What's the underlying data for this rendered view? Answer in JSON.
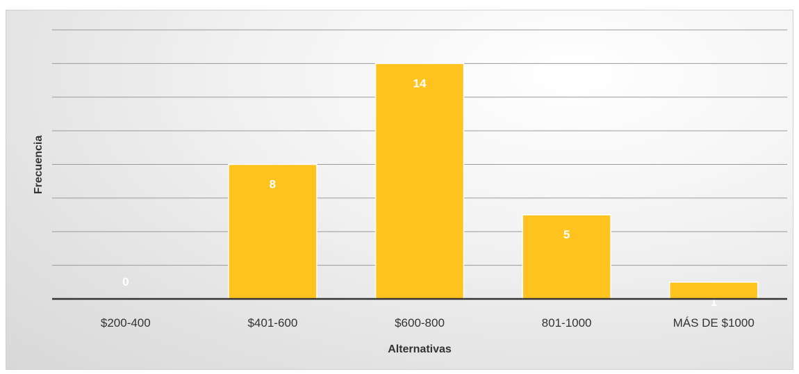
{
  "chart_data": {
    "type": "bar",
    "title": "",
    "xlabel": "Alternativas",
    "ylabel": "Frecuencia",
    "categories": [
      "$200-400",
      "$401-600",
      "$600-800",
      "801-1000",
      "MÁS DE $1000"
    ],
    "values": [
      0,
      8,
      14,
      5,
      1
    ],
    "ylim": [
      0,
      16
    ],
    "grid": true,
    "legend": "none",
    "colors": {
      "bar": "#FFC31F",
      "bar_edge": "#FFFFFF",
      "grid": "#9a9a9a",
      "axis": "#333333",
      "label": "#FFFFFF"
    }
  }
}
